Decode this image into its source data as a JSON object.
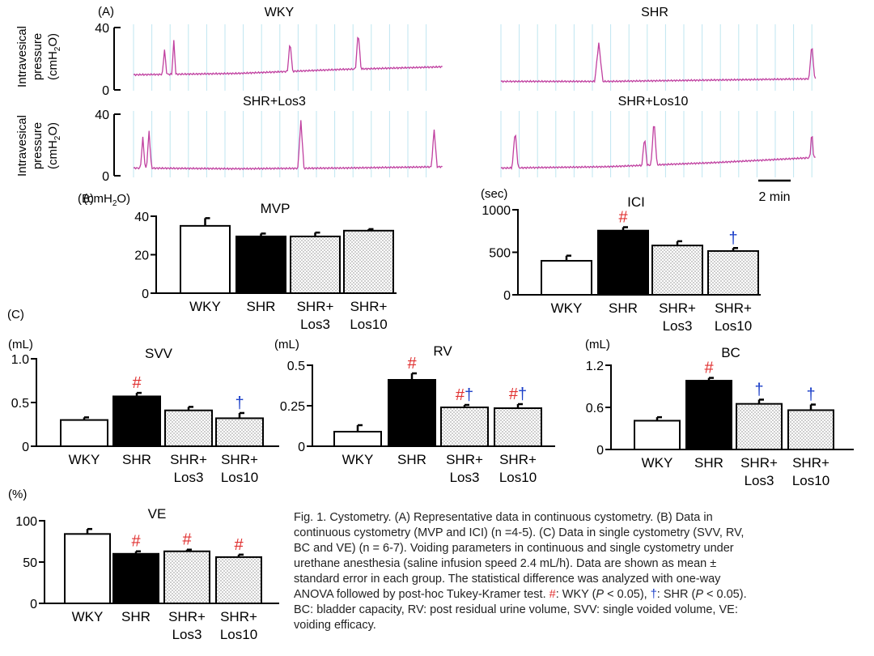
{
  "panel_labels": {
    "a": "(A)",
    "b": "(B)",
    "c": "(C)"
  },
  "traces": {
    "y_label_lines": [
      "Intravesical",
      "pressure",
      "(cmH2O)"
    ],
    "y_ticks": [
      "40",
      "0"
    ],
    "scale_bar_label": "2 min",
    "titles": [
      "WKY",
      "SHR",
      "SHR+Los3",
      "SHR+Los10"
    ],
    "trace_color": "#c040a0",
    "grid_color": "#bfe6f0"
  },
  "colors": {
    "hash": "#e03030",
    "dagger": "#1a3ec8"
  },
  "chart_data": [
    {
      "id": "mvp",
      "type": "bar",
      "title": "MVP",
      "unit": "(cmH2O)",
      "categories": [
        [
          "WKY"
        ],
        [
          "SHR"
        ],
        [
          "SHR+",
          "Los3"
        ],
        [
          "SHR+",
          "Los10"
        ]
      ],
      "values": [
        35,
        29.5,
        29.5,
        32.5
      ],
      "errors": [
        4,
        1.5,
        2,
        0.8
      ],
      "ylim": [
        0,
        40
      ],
      "yticks": [
        0,
        20,
        40
      ],
      "ytick_labels": [
        "0",
        "20",
        "40"
      ],
      "fills": [
        "white",
        "black",
        "dots",
        "dots"
      ],
      "marks": [
        [],
        [],
        [],
        []
      ]
    },
    {
      "id": "ici",
      "type": "bar",
      "title": "ICI",
      "unit": "(sec)",
      "categories": [
        [
          "WKY"
        ],
        [
          "SHR"
        ],
        [
          "SHR+",
          "Los3"
        ],
        [
          "SHR+",
          "Los10"
        ]
      ],
      "values": [
        400,
        755,
        580,
        515
      ],
      "errors": [
        60,
        40,
        50,
        35
      ],
      "ylim": [
        0,
        1000
      ],
      "yticks": [
        0,
        500,
        1000
      ],
      "ytick_labels": [
        "0",
        "500",
        "1000"
      ],
      "fills": [
        "white",
        "black",
        "dots",
        "dots"
      ],
      "marks": [
        [],
        [
          "#"
        ],
        [],
        [
          "†"
        ]
      ]
    },
    {
      "id": "svv",
      "type": "bar",
      "title": "SVV",
      "unit": "(mL)",
      "categories": [
        [
          "WKY"
        ],
        [
          "SHR"
        ],
        [
          "SHR+",
          "Los3"
        ],
        [
          "SHR+",
          "Los10"
        ]
      ],
      "values": [
        0.3,
        0.57,
        0.41,
        0.32
      ],
      "errors": [
        0.03,
        0.04,
        0.04,
        0.06
      ],
      "ylim": [
        0,
        1.0
      ],
      "yticks": [
        0,
        0.5,
        1.0
      ],
      "ytick_labels": [
        "0",
        "0.5",
        "1.0"
      ],
      "fills": [
        "white",
        "black",
        "dots",
        "dots"
      ],
      "marks": [
        [],
        [
          "#"
        ],
        [],
        [
          "†"
        ]
      ]
    },
    {
      "id": "rv",
      "type": "bar",
      "title": "RV",
      "unit": "(mL)",
      "categories": [
        [
          "WKY"
        ],
        [
          "SHR"
        ],
        [
          "SHR+",
          "Los3"
        ],
        [
          "SHR+",
          "Los10"
        ]
      ],
      "values": [
        0.09,
        0.41,
        0.24,
        0.235
      ],
      "errors": [
        0.04,
        0.04,
        0.015,
        0.025
      ],
      "ylim": [
        0,
        0.5
      ],
      "yticks": [
        0,
        0.25,
        0.5
      ],
      "ytick_labels": [
        "0",
        "0.25",
        "0.5"
      ],
      "fills": [
        "white",
        "black",
        "dots",
        "dots"
      ],
      "marks": [
        [],
        [
          "#"
        ],
        [
          "#",
          "†"
        ],
        [
          "#",
          "†"
        ]
      ]
    },
    {
      "id": "bc",
      "type": "bar",
      "title": "BC",
      "unit": "(mL)",
      "categories": [
        [
          "WKY"
        ],
        [
          "SHR"
        ],
        [
          "SHR+",
          "Los3"
        ],
        [
          "SHR+",
          "Los10"
        ]
      ],
      "values": [
        0.41,
        0.98,
        0.65,
        0.56
      ],
      "errors": [
        0.05,
        0.04,
        0.06,
        0.08
      ],
      "ylim": [
        0,
        1.2
      ],
      "yticks": [
        0,
        0.6,
        1.2
      ],
      "ytick_labels": [
        "0",
        "0.6",
        "1.2"
      ],
      "fills": [
        "white",
        "black",
        "dots",
        "dots"
      ],
      "marks": [
        [],
        [
          "#"
        ],
        [
          "†"
        ],
        [
          "†"
        ]
      ]
    },
    {
      "id": "ve",
      "type": "bar",
      "title": "VE",
      "unit": "(%)",
      "categories": [
        [
          "WKY"
        ],
        [
          "SHR"
        ],
        [
          "SHR+",
          "Los3"
        ],
        [
          "SHR+",
          "Los10"
        ]
      ],
      "values": [
        84,
        60,
        63,
        56
      ],
      "errors": [
        6,
        3,
        2,
        3
      ],
      "ylim": [
        0,
        100
      ],
      "yticks": [
        0,
        50,
        100
      ],
      "ytick_labels": [
        "0",
        "50",
        "100"
      ],
      "fills": [
        "white",
        "black",
        "dots",
        "dots"
      ],
      "marks": [
        [],
        [
          "#"
        ],
        [
          "#"
        ],
        [
          "#"
        ]
      ]
    }
  ],
  "caption": {
    "l1": "Fig. 1. Cystometry.  (A) Representative data in continuous  cystometry.  (B) Data in",
    "l2": "continuous cystometry  (MVP and ICI)  (n =4-5). (C) Data in single cystometry  (SVV, RV,",
    "l3": "BC and VE) (n = 6-7). Voiding parameters in continuous  and single cystometry  under",
    "l4": "urethane anesthesia (saline infusion speed 2.4 mL/h).  Data are shown  as mean  ±",
    "l5": "standard error in each group. The statistical difference was analyzed with one-way",
    "l6a": "ANOVA followed by post-hoc Tukey-Kramer  test.",
    "l6_hash": "#",
    "l6b": ": WKY  (",
    "l6_p1": "P",
    "l6c": " < 0.05),",
    "l6_dag": "†",
    "l6d": ": SHR  (",
    "l6_p2": "P",
    "l6e": " < 0.05).",
    "l7": "BC: bladder capacity, RV: post residual urine volume, SVV: single voided volume, VE:",
    "l8": "voiding efficacy."
  }
}
